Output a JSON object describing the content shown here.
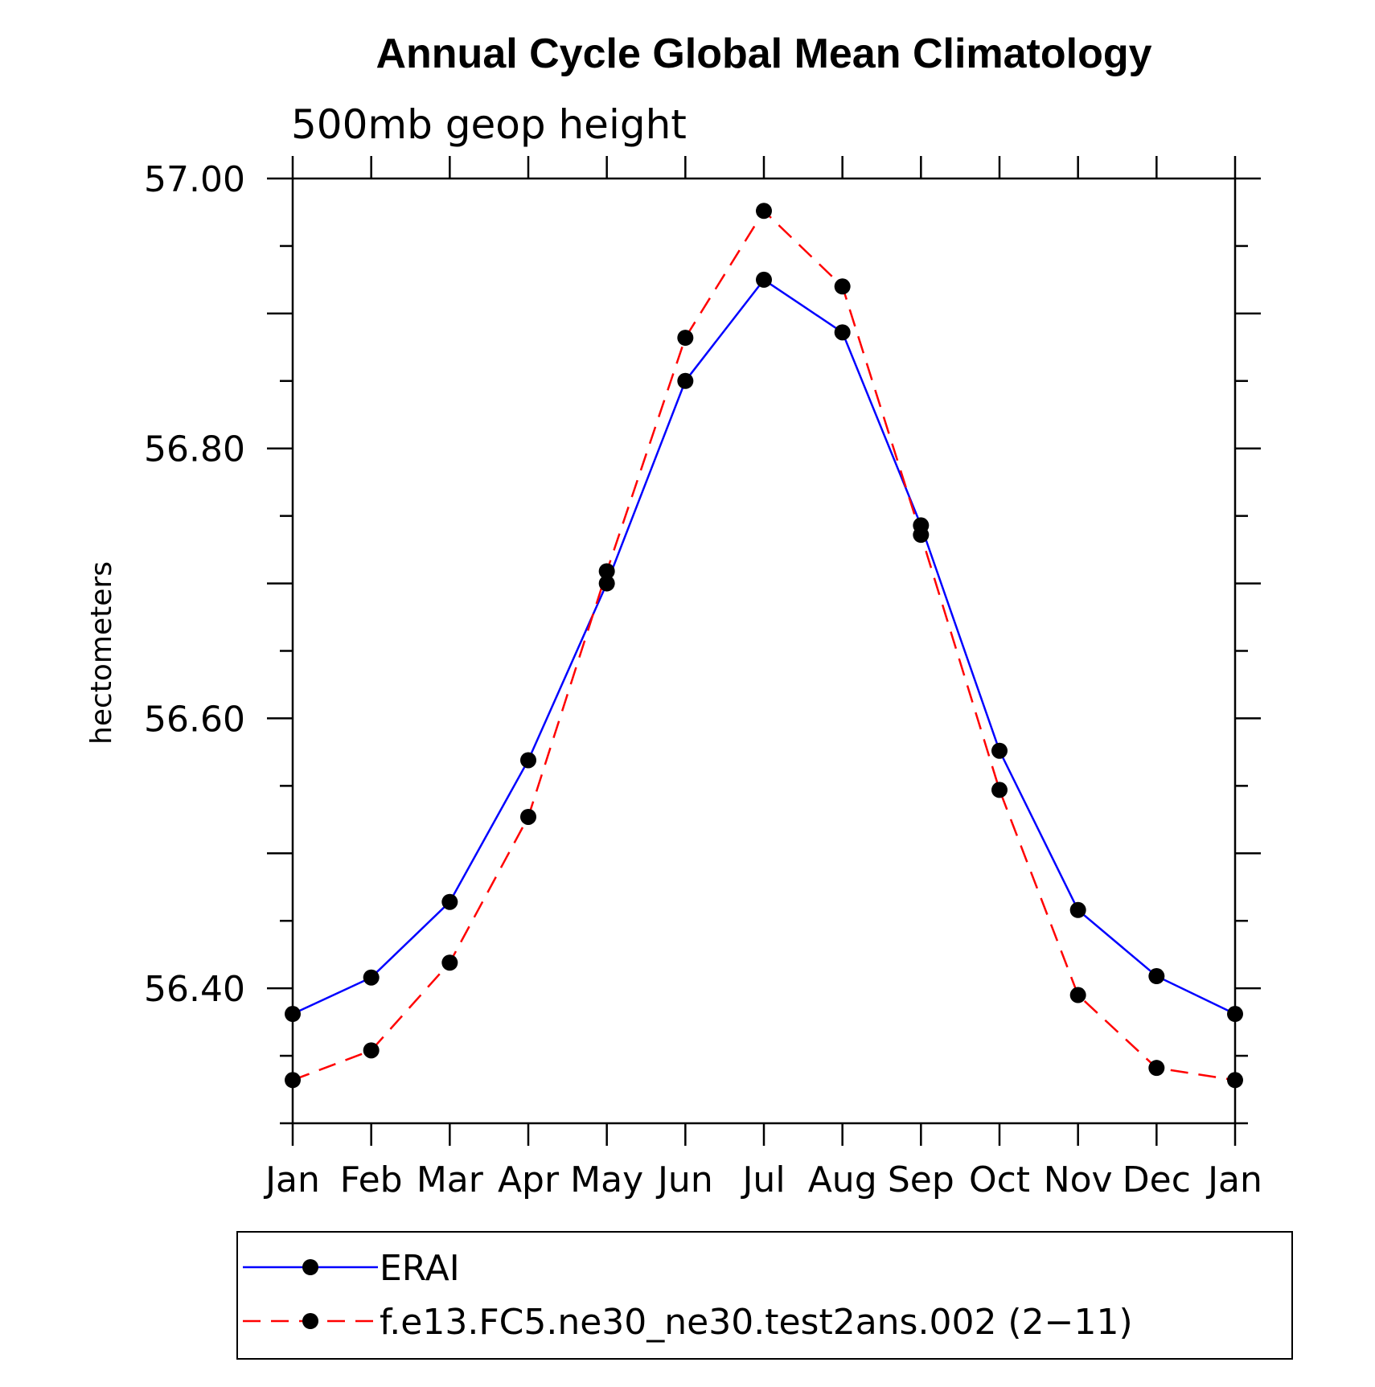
{
  "chart_data": {
    "type": "line",
    "title": "Annual Cycle Global Mean Climatology",
    "subtitle": "500mb geop height",
    "xlabel": "",
    "ylabel": "hectometers",
    "categories": [
      "Jan",
      "Feb",
      "Mar",
      "Apr",
      "May",
      "Jun",
      "Jul",
      "Aug",
      "Sep",
      "Oct",
      "Nov",
      "Dec",
      "Jan"
    ],
    "ylim": [
      56.3,
      57.0
    ],
    "y_major_ticks": [
      "56.40",
      "56.60",
      "56.80",
      "57.00"
    ],
    "grid": false,
    "legend_position": "bottom",
    "series": [
      {
        "name": "ERAI",
        "color": "#0000ff",
        "line_style": "solid",
        "marker": "filled-circle",
        "values": [
          56.381,
          56.408,
          56.464,
          56.569,
          56.7,
          56.85,
          56.925,
          56.886,
          56.743,
          56.576,
          56.458,
          56.409,
          56.381
        ]
      },
      {
        "name": "f.e13.FC5.ne30_ne30.test2ans.002 (2−11)",
        "color": "#ff0000",
        "line_style": "dashed",
        "marker": "filled-circle",
        "values": [
          56.332,
          56.354,
          56.419,
          56.527,
          56.709,
          56.882,
          56.976,
          56.92,
          56.736,
          56.547,
          56.395,
          56.341,
          56.332
        ]
      }
    ]
  }
}
